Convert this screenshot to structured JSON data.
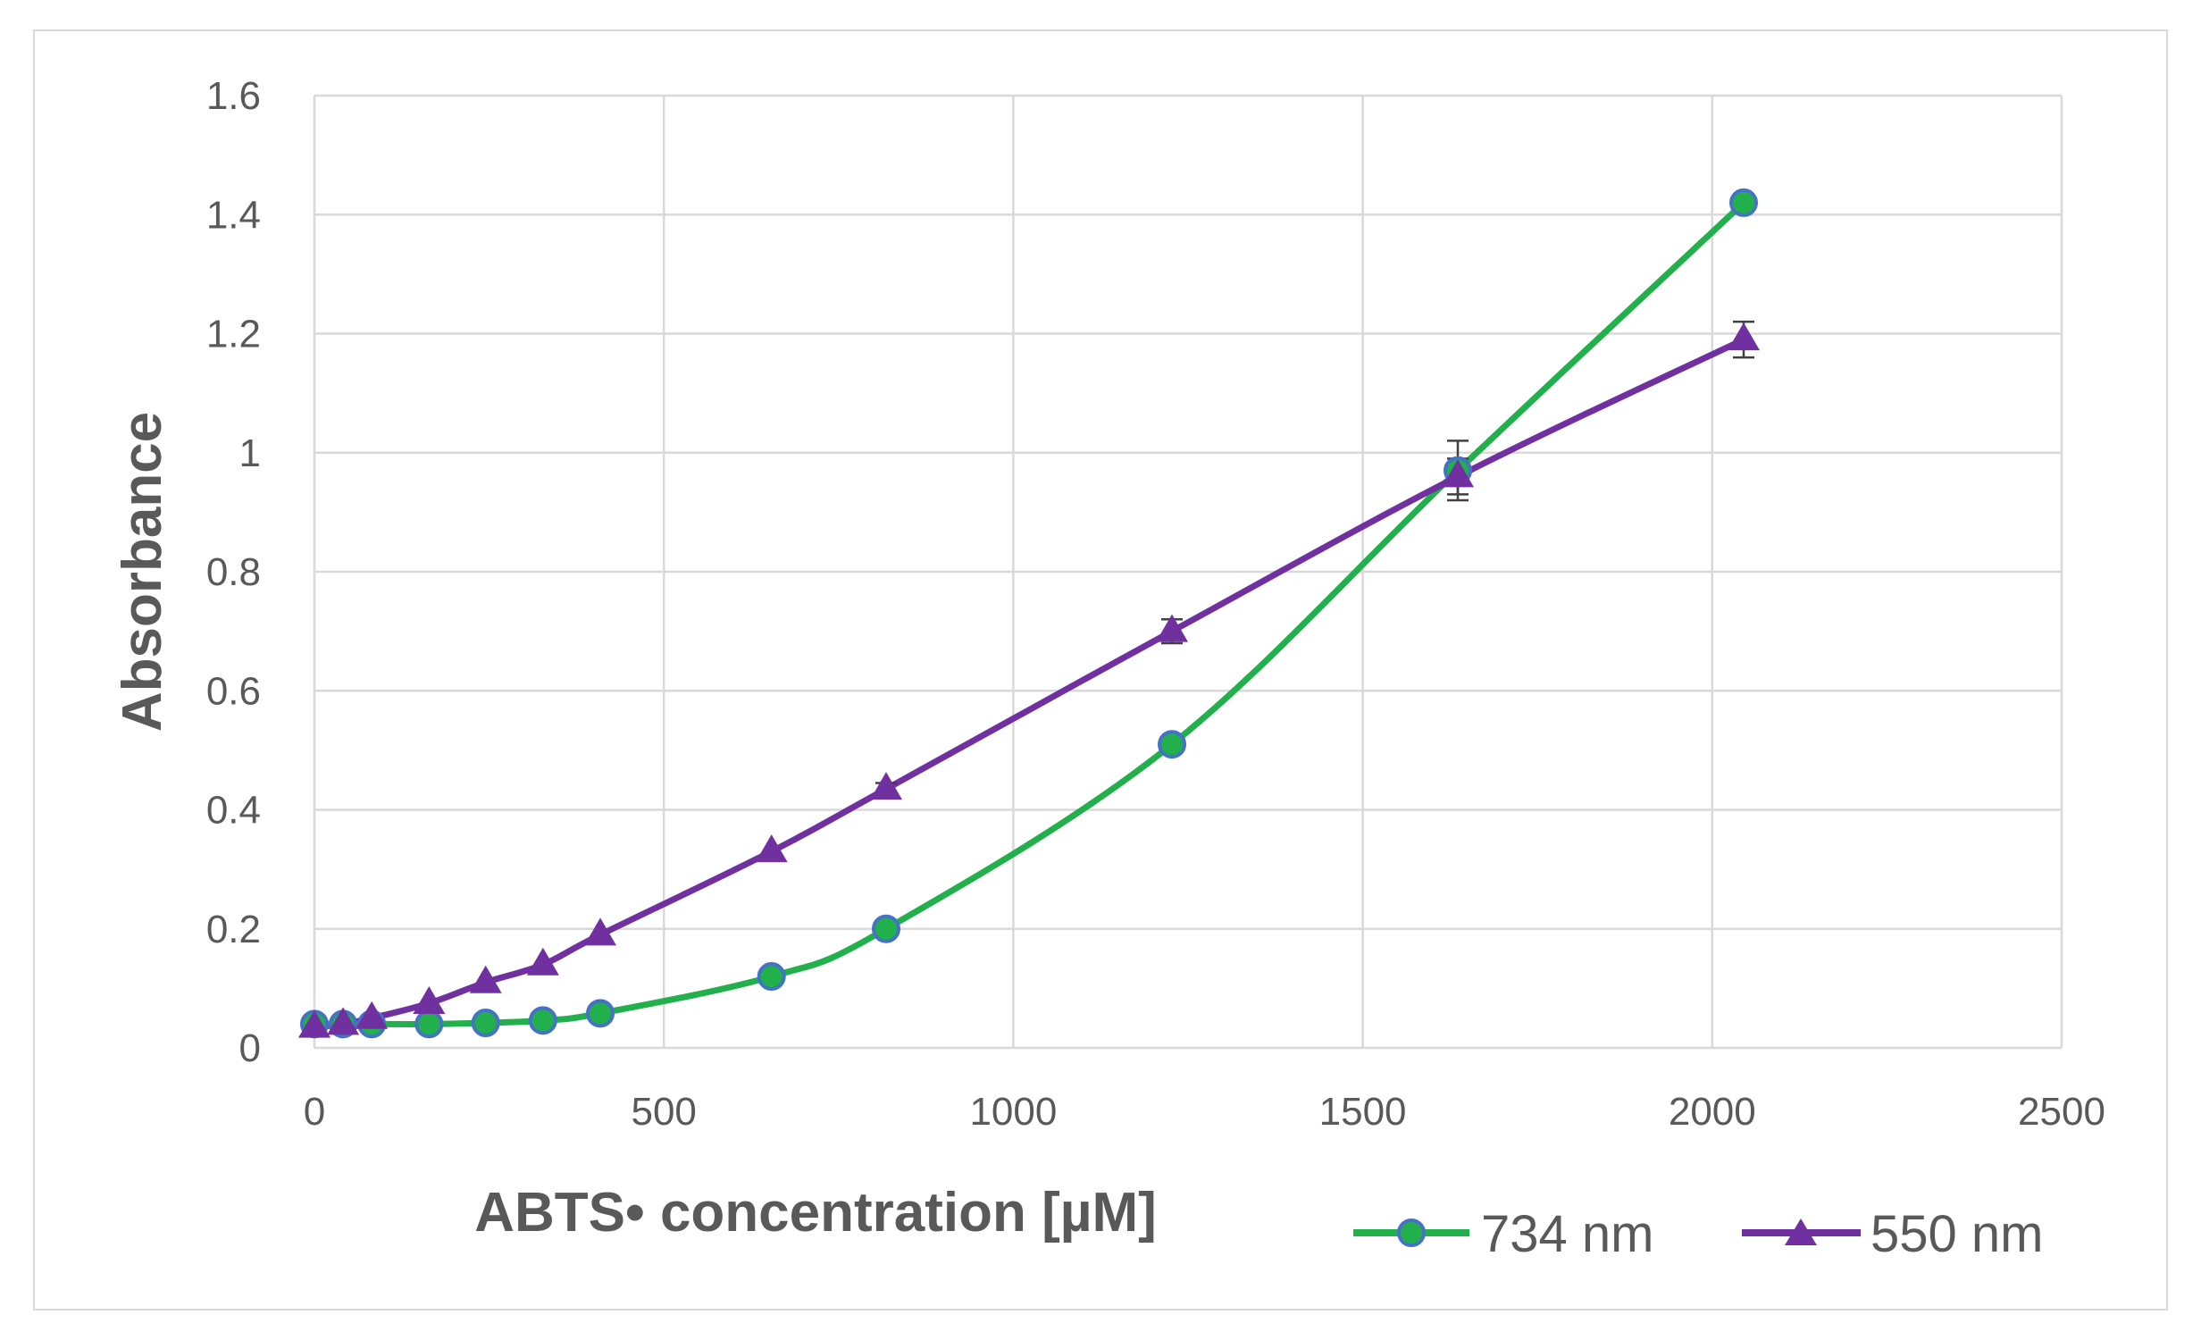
{
  "chart_data": {
    "type": "line",
    "title": "",
    "xlabel": "ABTS• concentration [µM]",
    "ylabel": "Absorbance",
    "xlim": [
      0,
      2500
    ],
    "ylim": [
      0,
      1.6
    ],
    "x_ticks": [
      0,
      500,
      1000,
      1500,
      2000,
      2500
    ],
    "x_tick_labels": [
      "0",
      "500",
      "1000",
      "1500",
      "2000",
      "2500"
    ],
    "y_ticks": [
      0,
      0.2,
      0.4,
      0.6,
      0.8,
      1,
      1.2,
      1.4,
      1.6
    ],
    "y_tick_labels": [
      "0",
      "0.2",
      "0.4",
      "0.6",
      "0.8",
      "1",
      "1.2",
      "1.4",
      "1.6"
    ],
    "grid": true,
    "legend_position": "bottom-right",
    "series": [
      {
        "name": "734 nm",
        "marker": "circle",
        "color": "#21b04b",
        "marker_edge_color": "#4472c4",
        "smooth": true,
        "x": [
          0,
          41,
          82,
          164,
          245,
          327,
          409,
          654,
          818,
          1227,
          1636,
          2045
        ],
        "y": [
          0.04,
          0.04,
          0.04,
          0.04,
          0.042,
          0.046,
          0.058,
          0.12,
          0.2,
          0.51,
          0.97,
          1.42
        ],
        "error": [
          0,
          0,
          0,
          0,
          0,
          0,
          0,
          0,
          0,
          0,
          0.05,
          0
        ]
      },
      {
        "name": "550 nm",
        "marker": "triangle",
        "color": "#7030a0",
        "smooth": true,
        "x": [
          0,
          41,
          82,
          164,
          245,
          327,
          409,
          654,
          818,
          1227,
          1636,
          2045
        ],
        "y": [
          0.035,
          0.04,
          0.05,
          0.075,
          0.11,
          0.14,
          0.19,
          0.33,
          0.435,
          0.7,
          0.96,
          1.19
        ],
        "error": [
          0,
          0,
          0,
          0,
          0,
          0,
          0,
          0,
          0.01,
          0.02,
          0.03,
          0.03
        ]
      }
    ]
  }
}
